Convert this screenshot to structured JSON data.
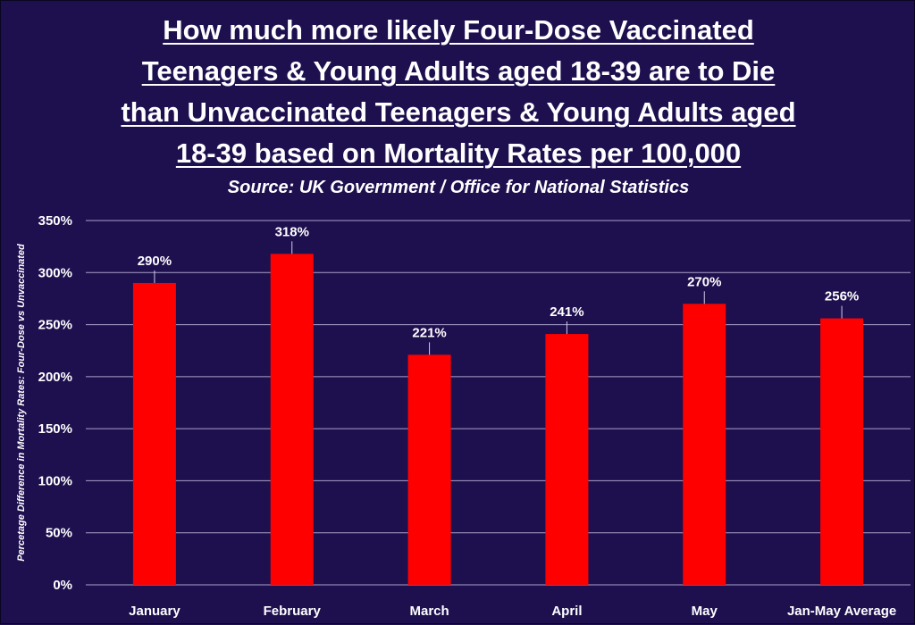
{
  "chart_data": {
    "type": "bar",
    "title_lines": [
      "How much more likely Four-Dose Vaccinated",
      "Teenagers & Young Adults aged 18-39 are to Die",
      "than Unvaccinated Teenagers & Young Adults aged",
      "18-39 based on Mortality Rates per 100,000"
    ],
    "subtitle": "Source: UK Government / Office for National Statistics",
    "xlabel": "",
    "ylabel": "Percetage Difference in Mortality Rates: Four-Dose vs Unvaccinated",
    "categories": [
      "January",
      "February",
      "March",
      "April",
      "May",
      "Jan-May Average"
    ],
    "values": [
      290,
      318,
      221,
      241,
      270,
      256
    ],
    "data_labels": [
      "290%",
      "318%",
      "221%",
      "241%",
      "270%",
      "256%"
    ],
    "ylim": [
      0,
      350
    ],
    "yticks": [
      0,
      50,
      100,
      150,
      200,
      250,
      300,
      350
    ],
    "ytick_labels": [
      "0%",
      "50%",
      "100%",
      "150%",
      "200%",
      "250%",
      "300%",
      "350%"
    ],
    "grid": true,
    "legend": "none",
    "bar_color": "#ff0000",
    "background_color": "#1e0f4f"
  }
}
